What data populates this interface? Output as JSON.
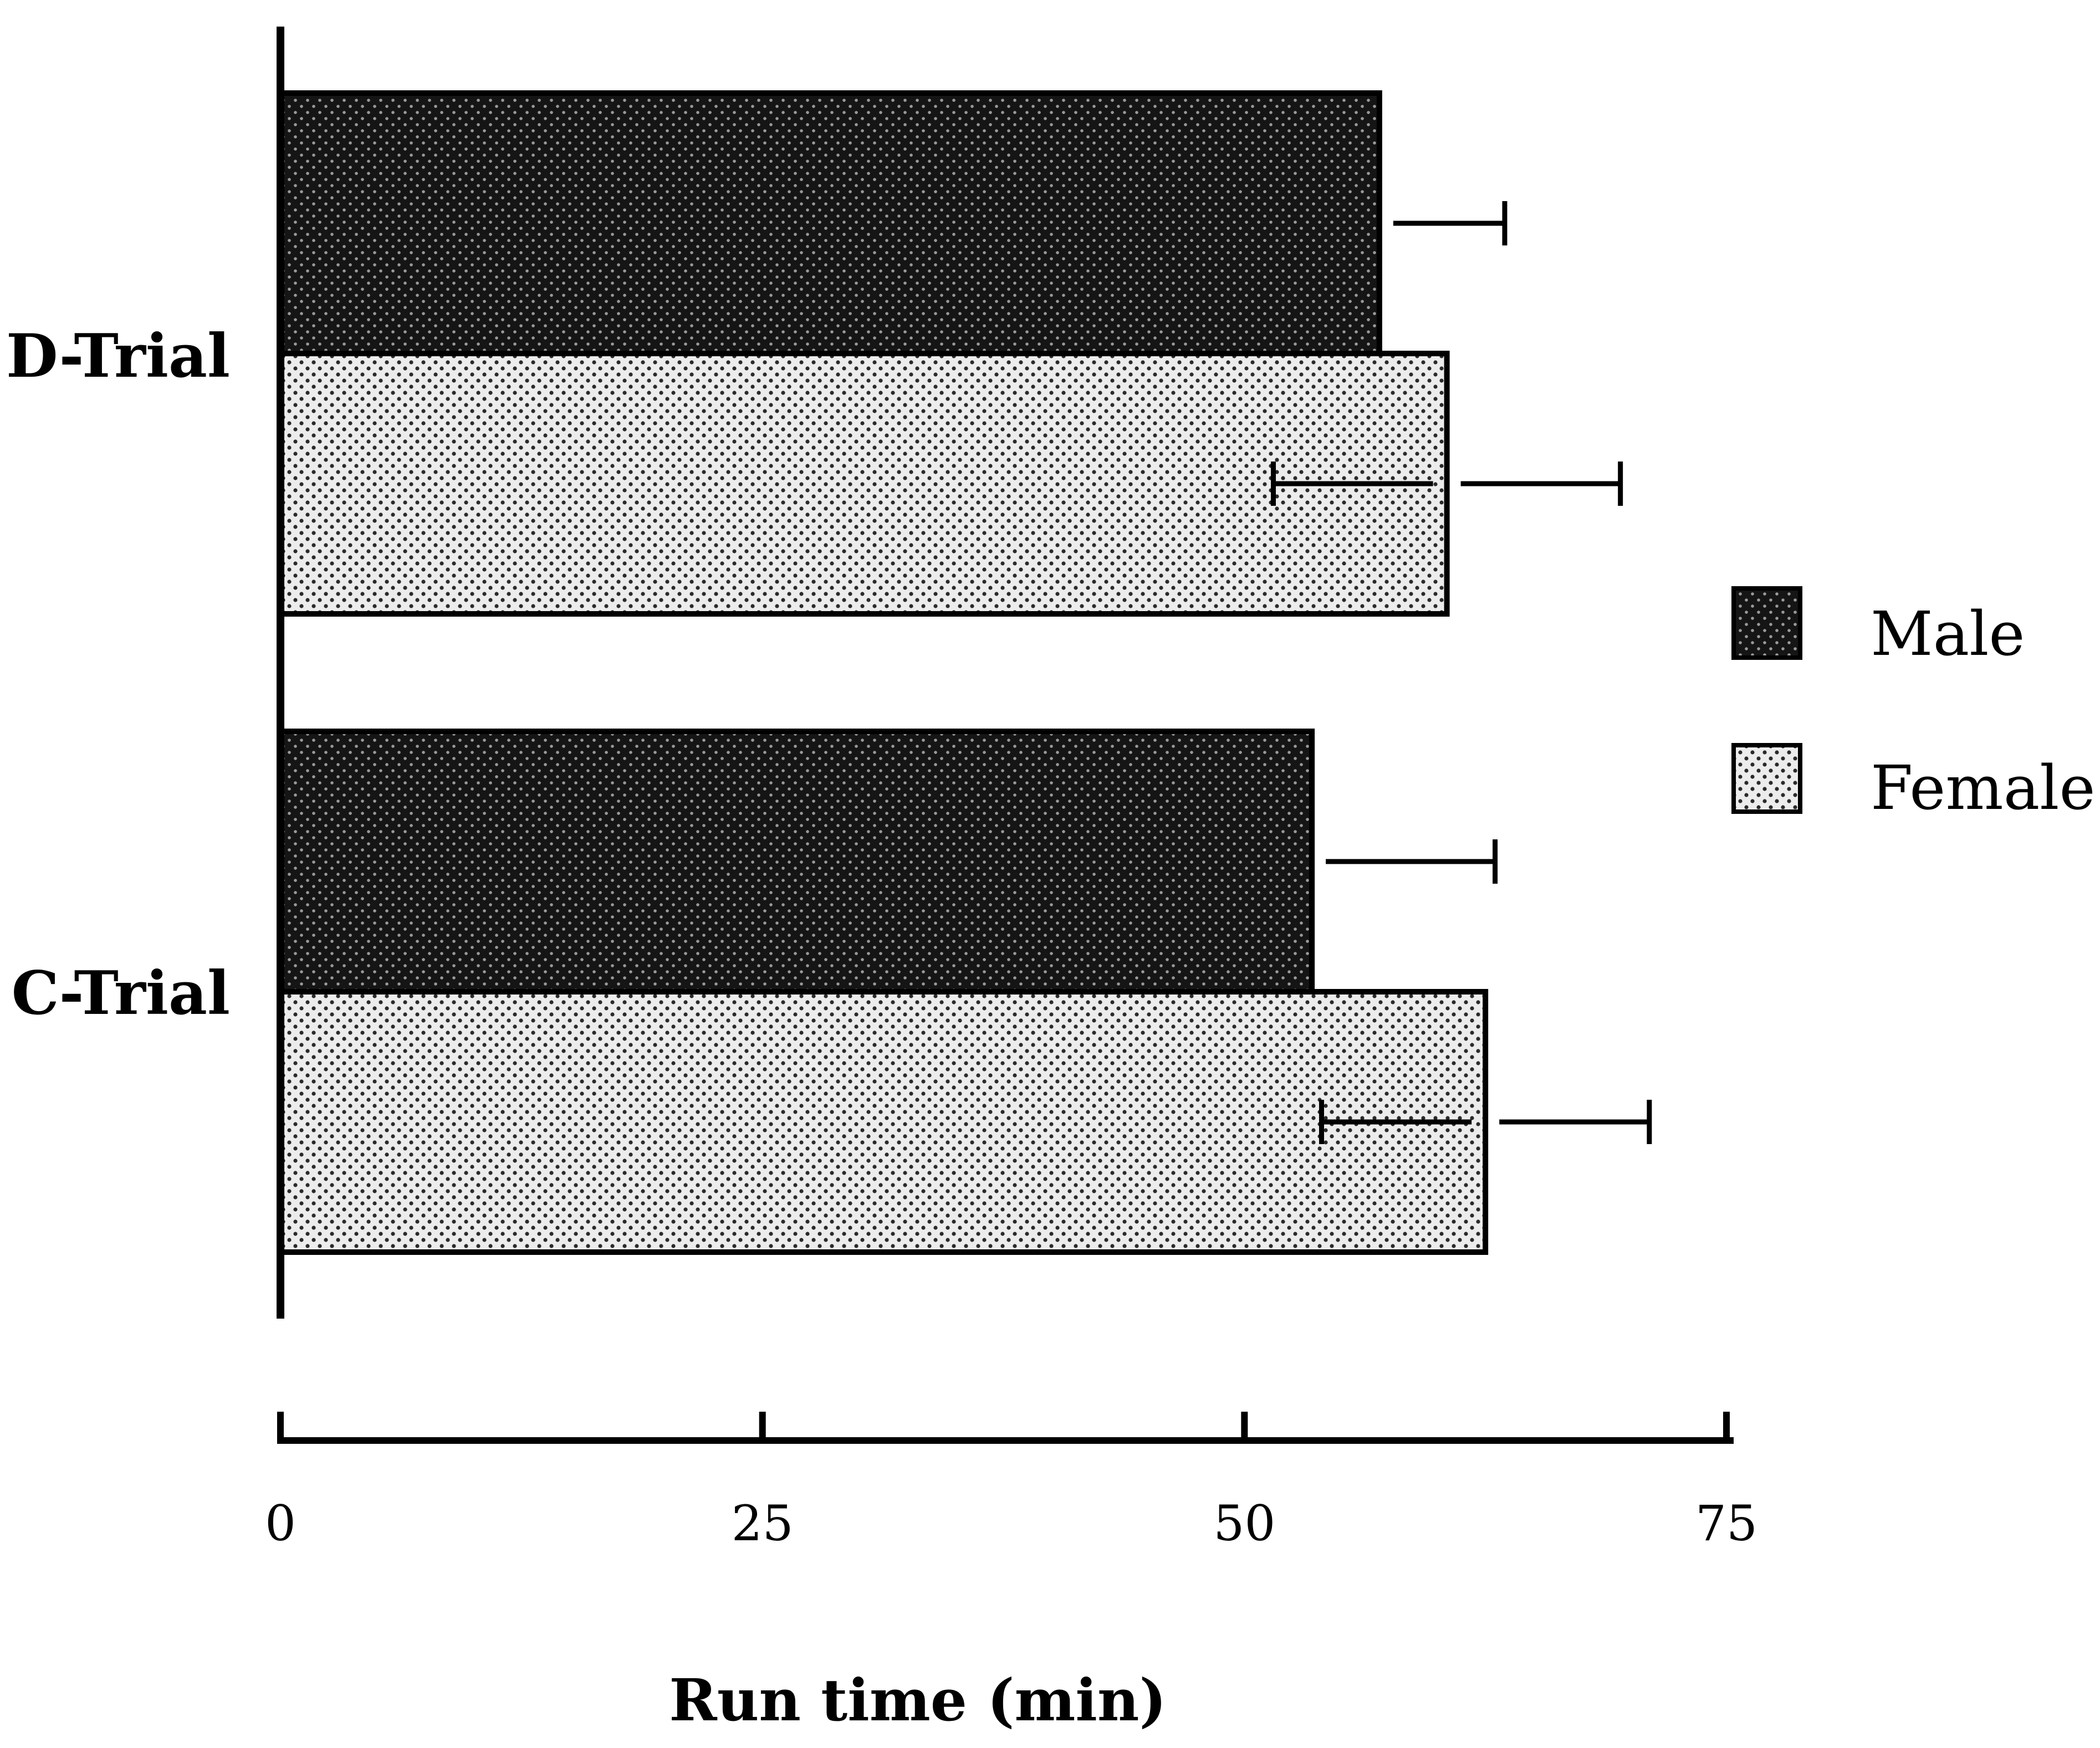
{
  "chart_data": {
    "type": "bar",
    "orientation": "horizontal",
    "categories": [
      "D-Trial",
      "C-Trial"
    ],
    "series": [
      {
        "name": "Male",
        "values": [
          57,
          53.5
        ],
        "error_plus": [
          6.5,
          9.5
        ],
        "color": "#1a1a1a"
      },
      {
        "name": "Female",
        "values": [
          60.5,
          62.5
        ],
        "error_plus": [
          9,
          8.5
        ],
        "error_minus": [
          9,
          8.5
        ],
        "color": "#e6e6e6"
      }
    ],
    "xlabel": "Run time (min)",
    "xlim": [
      0,
      75
    ],
    "xticks": [
      0,
      25,
      50,
      75
    ],
    "xtick_labels": [
      "0",
      "25",
      "50",
      "75"
    ],
    "legend_position": "right",
    "grid": false
  }
}
